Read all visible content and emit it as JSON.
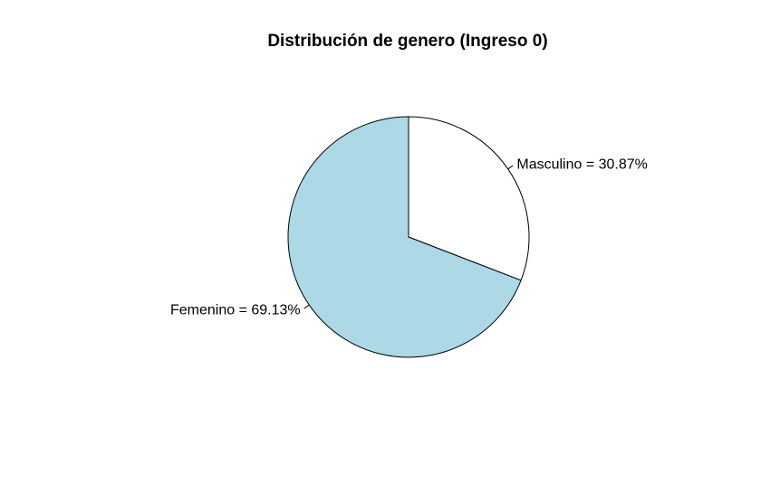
{
  "chart_data": {
    "type": "pie",
    "title": "Distribución de genero (Ingreso 0)",
    "slices": [
      {
        "label": "Masculino = 30.87%",
        "value": 30.87,
        "color": "#FFFFFF"
      },
      {
        "label": "Femenino = 69.13%",
        "value": 69.13,
        "color": "#ADD8E6"
      }
    ],
    "start_angle": "12 o'clock",
    "direction": "clockwise",
    "border_color": "#000000"
  }
}
